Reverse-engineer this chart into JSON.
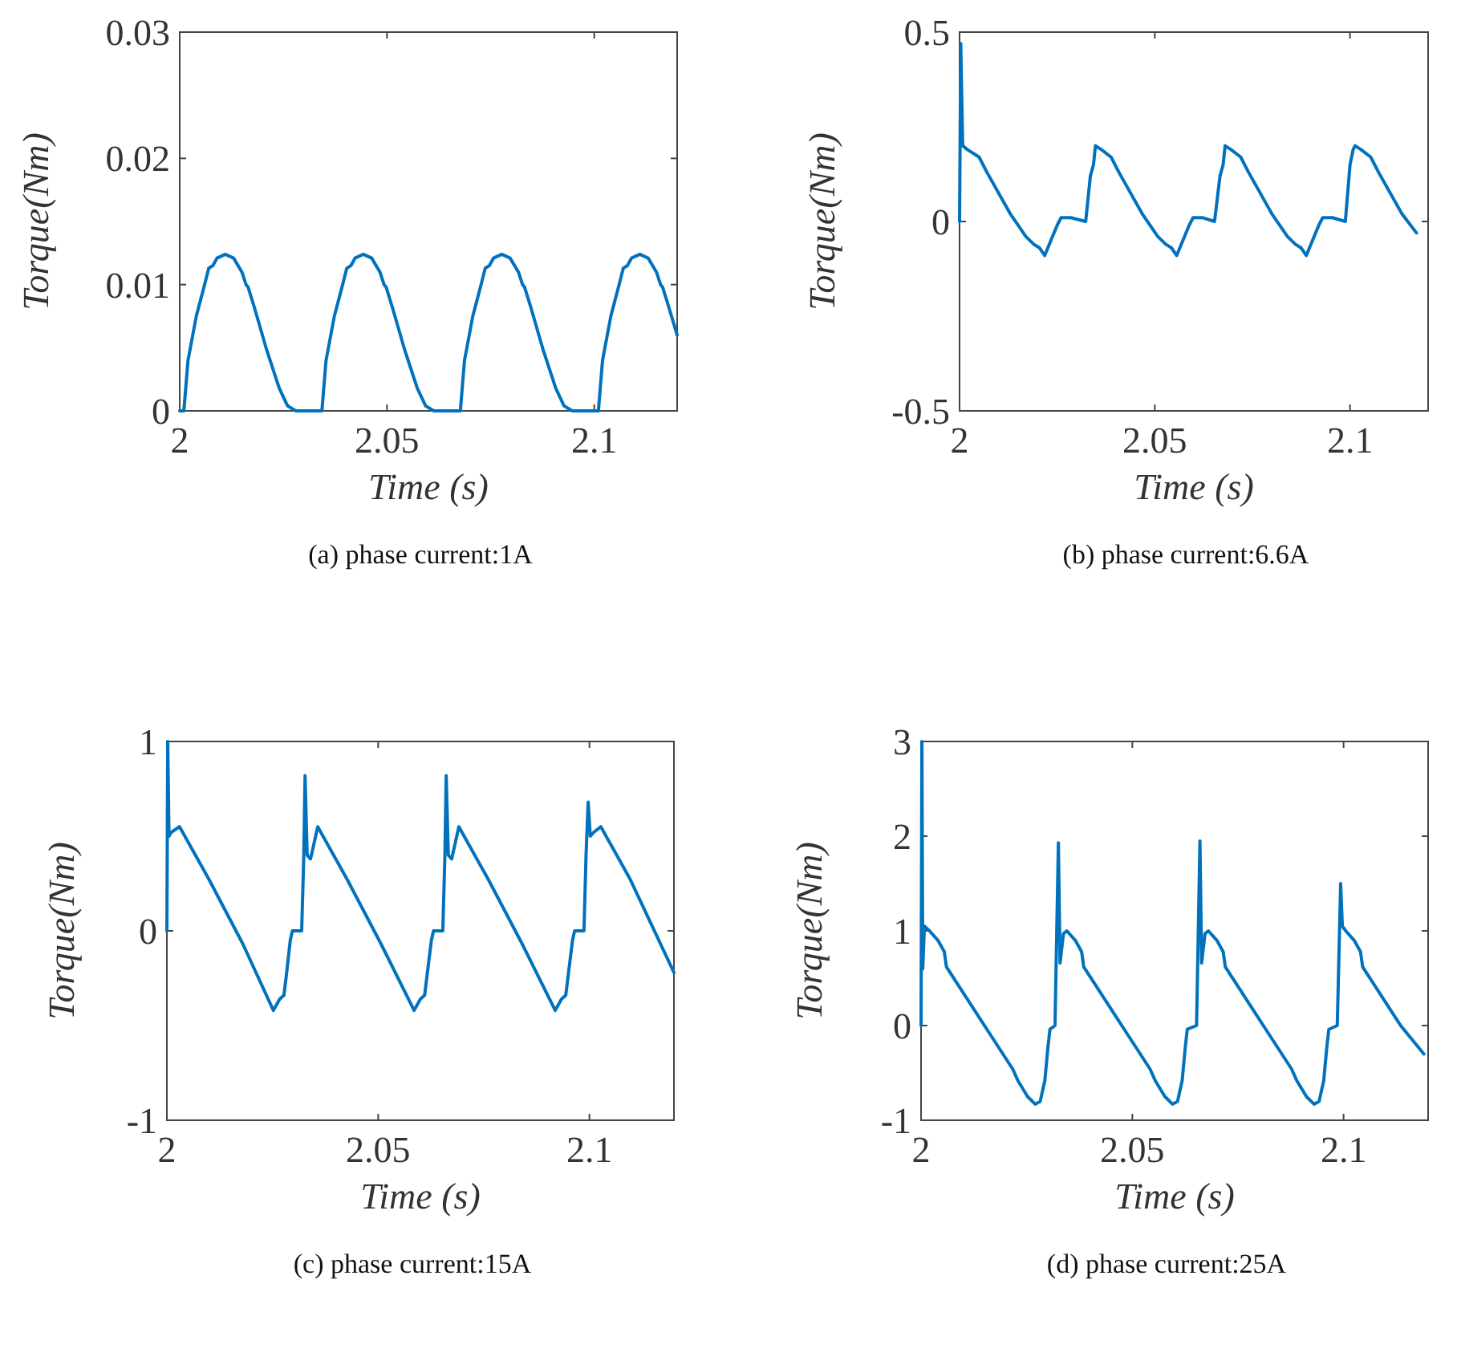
{
  "chart_data": [
    {
      "type": "line",
      "title": "(a) phase current:1A",
      "xlabel": "Time (s)",
      "ylabel": "Torque(Nm)",
      "xlim": [
        2,
        2.12
      ],
      "xticks": [
        2,
        2.05,
        2.1
      ],
      "ylim": [
        0,
        0.03
      ],
      "yticks": [
        0,
        0.01,
        0.02,
        0.03
      ],
      "grid": false,
      "marker": "none",
      "line_style": "solid",
      "x": [
        2.0,
        2.001,
        2.0015,
        2.002,
        2.004,
        2.006,
        2.007,
        2.008,
        2.009,
        2.011,
        2.013,
        2.015,
        2.016,
        2.0165,
        2.018,
        2.021,
        2.024,
        2.026,
        2.028,
        2.0343,
        2.0348,
        2.0353,
        2.0373,
        2.0393,
        2.0403,
        2.0413,
        2.0423,
        2.0443,
        2.0463,
        2.0483,
        2.0493,
        2.0498,
        2.0513,
        2.0543,
        2.0573,
        2.0593,
        2.0613,
        2.0677,
        2.0682,
        2.0687,
        2.0707,
        2.0727,
        2.0737,
        2.0747,
        2.0757,
        2.0777,
        2.0797,
        2.0817,
        2.0827,
        2.0832,
        2.0847,
        2.0877,
        2.0907,
        2.0927,
        2.0947,
        2.101,
        2.1015,
        2.102,
        2.104,
        2.106,
        2.107,
        2.108,
        2.109,
        2.111,
        2.113,
        2.115,
        2.116,
        2.1165,
        2.118,
        2.12
      ],
      "series": [
        {
          "color": "#0072bd",
          "values": [
            0,
            0,
            0.002,
            0.004,
            0.0075,
            0.01,
            0.0113,
            0.0115,
            0.0121,
            0.0124,
            0.0121,
            0.011,
            0.01,
            0.0098,
            0.0082,
            0.0048,
            0.0018,
            0.0004,
            0,
            0,
            0.002,
            0.004,
            0.0075,
            0.01,
            0.0113,
            0.0115,
            0.0121,
            0.0124,
            0.0121,
            0.011,
            0.01,
            0.0098,
            0.0082,
            0.0048,
            0.0018,
            0.0004,
            0,
            0,
            0.002,
            0.004,
            0.0075,
            0.01,
            0.0113,
            0.0115,
            0.0121,
            0.0124,
            0.0121,
            0.011,
            0.01,
            0.0098,
            0.0082,
            0.0048,
            0.0018,
            0.0004,
            0,
            0,
            0.002,
            0.004,
            0.0075,
            0.01,
            0.0113,
            0.0115,
            0.0121,
            0.0124,
            0.0121,
            0.011,
            0.01,
            0.0098,
            0.0082,
            0.006
          ]
        }
      ]
    },
    {
      "type": "line",
      "title": "(b) phase current:6.6A",
      "xlabel": "Time (s)",
      "ylabel": "Torque(Nm)",
      "xlim": [
        2,
        2.12
      ],
      "xticks": [
        2,
        2.05,
        2.1
      ],
      "ylim": [
        -0.5,
        0.5
      ],
      "yticks": [
        -0.5,
        0,
        0.5
      ],
      "grid": false,
      "marker": "none",
      "line_style": "solid",
      "x": [
        2,
        2.0003,
        2.0008,
        2.002,
        2.005,
        2.007,
        2.013,
        2.017,
        2.019,
        2.0205,
        2.0218,
        2.023,
        2.025,
        2.026,
        2.0285,
        2.0323,
        2.0335,
        2.0343,
        2.0348,
        2.0363,
        2.0388,
        2.0408,
        2.0468,
        2.0508,
        2.0528,
        2.0543,
        2.0556,
        2.0568,
        2.0588,
        2.0598,
        2.0623,
        2.0653,
        2.0667,
        2.0675,
        2.068,
        2.0695,
        2.072,
        2.074,
        2.08,
        2.084,
        2.086,
        2.0875,
        2.0888,
        2.09,
        2.092,
        2.093,
        2.0955,
        2.0988,
        2.1,
        2.1008,
        2.1013,
        2.1028,
        2.1053,
        2.1073,
        2.1133,
        2.117
      ],
      "series": [
        {
          "color": "#0072bd",
          "values": [
            0,
            0.47,
            0.2,
            0.19,
            0.17,
            0.13,
            0.02,
            -0.04,
            -0.06,
            -0.07,
            -0.09,
            -0.06,
            -0.01,
            0.01,
            0.01,
            0,
            0.12,
            0.15,
            0.2,
            0.19,
            0.17,
            0.13,
            0.02,
            -0.04,
            -0.06,
            -0.07,
            -0.09,
            -0.06,
            -0.01,
            0.01,
            0.01,
            0,
            0.12,
            0.15,
            0.2,
            0.19,
            0.17,
            0.13,
            0.02,
            -0.04,
            -0.06,
            -0.07,
            -0.09,
            -0.06,
            -0.01,
            0.01,
            0.01,
            0,
            0.15,
            0.19,
            0.2,
            0.19,
            0.17,
            0.13,
            0.02,
            -0.03
          ]
        }
      ]
    },
    {
      "type": "line",
      "title": "(c) phase current:15A",
      "xlabel": "Time (s)",
      "ylabel": "Torque(Nm)",
      "xlim": [
        2,
        2.12
      ],
      "xticks": [
        2,
        2.05,
        2.1
      ],
      "ylim": [
        -1,
        1
      ],
      "yticks": [
        -1,
        0,
        1
      ],
      "grid": false,
      "marker": "none",
      "line_style": "solid",
      "x": [
        2,
        2.0002,
        2.0005,
        2.001,
        2.003,
        2.01,
        2.018,
        2.0252,
        2.0267,
        2.0277,
        2.0283,
        2.0292,
        2.0297,
        2.0319,
        2.0324,
        2.0327,
        2.0332,
        2.034,
        2.0357,
        2.0427,
        2.0507,
        2.0585,
        2.06,
        2.061,
        2.0616,
        2.0626,
        2.0631,
        2.0653,
        2.0658,
        2.0661,
        2.0666,
        2.0674,
        2.0691,
        2.0761,
        2.0841,
        2.0919,
        2.0934,
        2.0944,
        2.095,
        2.096,
        2.0965,
        2.0987,
        2.0992,
        2.0997,
        2.1002,
        2.101,
        2.1027,
        2.1097,
        2.12
      ],
      "series": [
        {
          "color": "#0072bd",
          "values": [
            0,
            1,
            0.5,
            0.52,
            0.55,
            0.27,
            -0.07,
            -0.42,
            -0.36,
            -0.34,
            -0.23,
            -0.05,
            0,
            0,
            0.4,
            0.82,
            0.4,
            0.38,
            0.55,
            0.27,
            -0.07,
            -0.42,
            -0.36,
            -0.34,
            -0.23,
            -0.05,
            0,
            0,
            0.4,
            0.82,
            0.4,
            0.38,
            0.55,
            0.27,
            -0.07,
            -0.42,
            -0.36,
            -0.34,
            -0.23,
            -0.05,
            0,
            0,
            0.4,
            0.68,
            0.5,
            0.52,
            0.55,
            0.27,
            -0.22
          ]
        }
      ]
    },
    {
      "type": "line",
      "title": "(d) phase current:25A",
      "xlabel": "Time (s)",
      "ylabel": "Torque(Nm)",
      "xlim": [
        2,
        2.12
      ],
      "xticks": [
        2,
        2.05,
        2.1
      ],
      "ylim": [
        -1,
        3
      ],
      "yticks": [
        -1,
        0,
        1,
        2,
        3
      ],
      "grid": false,
      "marker": "none",
      "line_style": "solid",
      "x": [
        2,
        2.0002,
        2.0004,
        2.0008,
        2.002,
        2.004,
        2.0055,
        2.006,
        2.015,
        2.0217,
        2.0229,
        2.0252,
        2.027,
        2.0282,
        2.0293,
        2.03,
        2.0305,
        2.0317,
        2.0325,
        2.0329,
        2.0337,
        2.0345,
        2.0365,
        2.038,
        2.0385,
        2.0475,
        2.0542,
        2.0554,
        2.0577,
        2.0595,
        2.0607,
        2.0618,
        2.0625,
        2.063,
        2.0652,
        2.066,
        2.0664,
        2.0672,
        2.068,
        2.07,
        2.0715,
        2.072,
        2.081,
        2.0877,
        2.0889,
        2.0912,
        2.093,
        2.0942,
        2.0953,
        2.096,
        2.0965,
        2.0985,
        2.0993,
        2.0997,
        2.1005,
        2.1025,
        2.104,
        2.1045,
        2.1135,
        2.119
      ],
      "series": [
        {
          "color": "#0072bd",
          "values": [
            0,
            3,
            0.6,
            1.05,
            1.0,
            0.9,
            0.78,
            0.62,
            0,
            -0.46,
            -0.58,
            -0.75,
            -0.83,
            -0.8,
            -0.58,
            -0.24,
            -0.04,
            0,
            1.93,
            0.66,
            0.97,
            1.0,
            0.9,
            0.78,
            0.62,
            0,
            -0.46,
            -0.58,
            -0.75,
            -0.83,
            -0.8,
            -0.58,
            -0.24,
            -0.04,
            0,
            1.95,
            0.66,
            0.97,
            1.0,
            0.9,
            0.78,
            0.62,
            0,
            -0.46,
            -0.58,
            -0.75,
            -0.83,
            -0.8,
            -0.58,
            -0.24,
            -0.04,
            0,
            1.5,
            1.05,
            1.0,
            0.9,
            0.78,
            0.62,
            0,
            -0.3
          ]
        }
      ]
    }
  ]
}
